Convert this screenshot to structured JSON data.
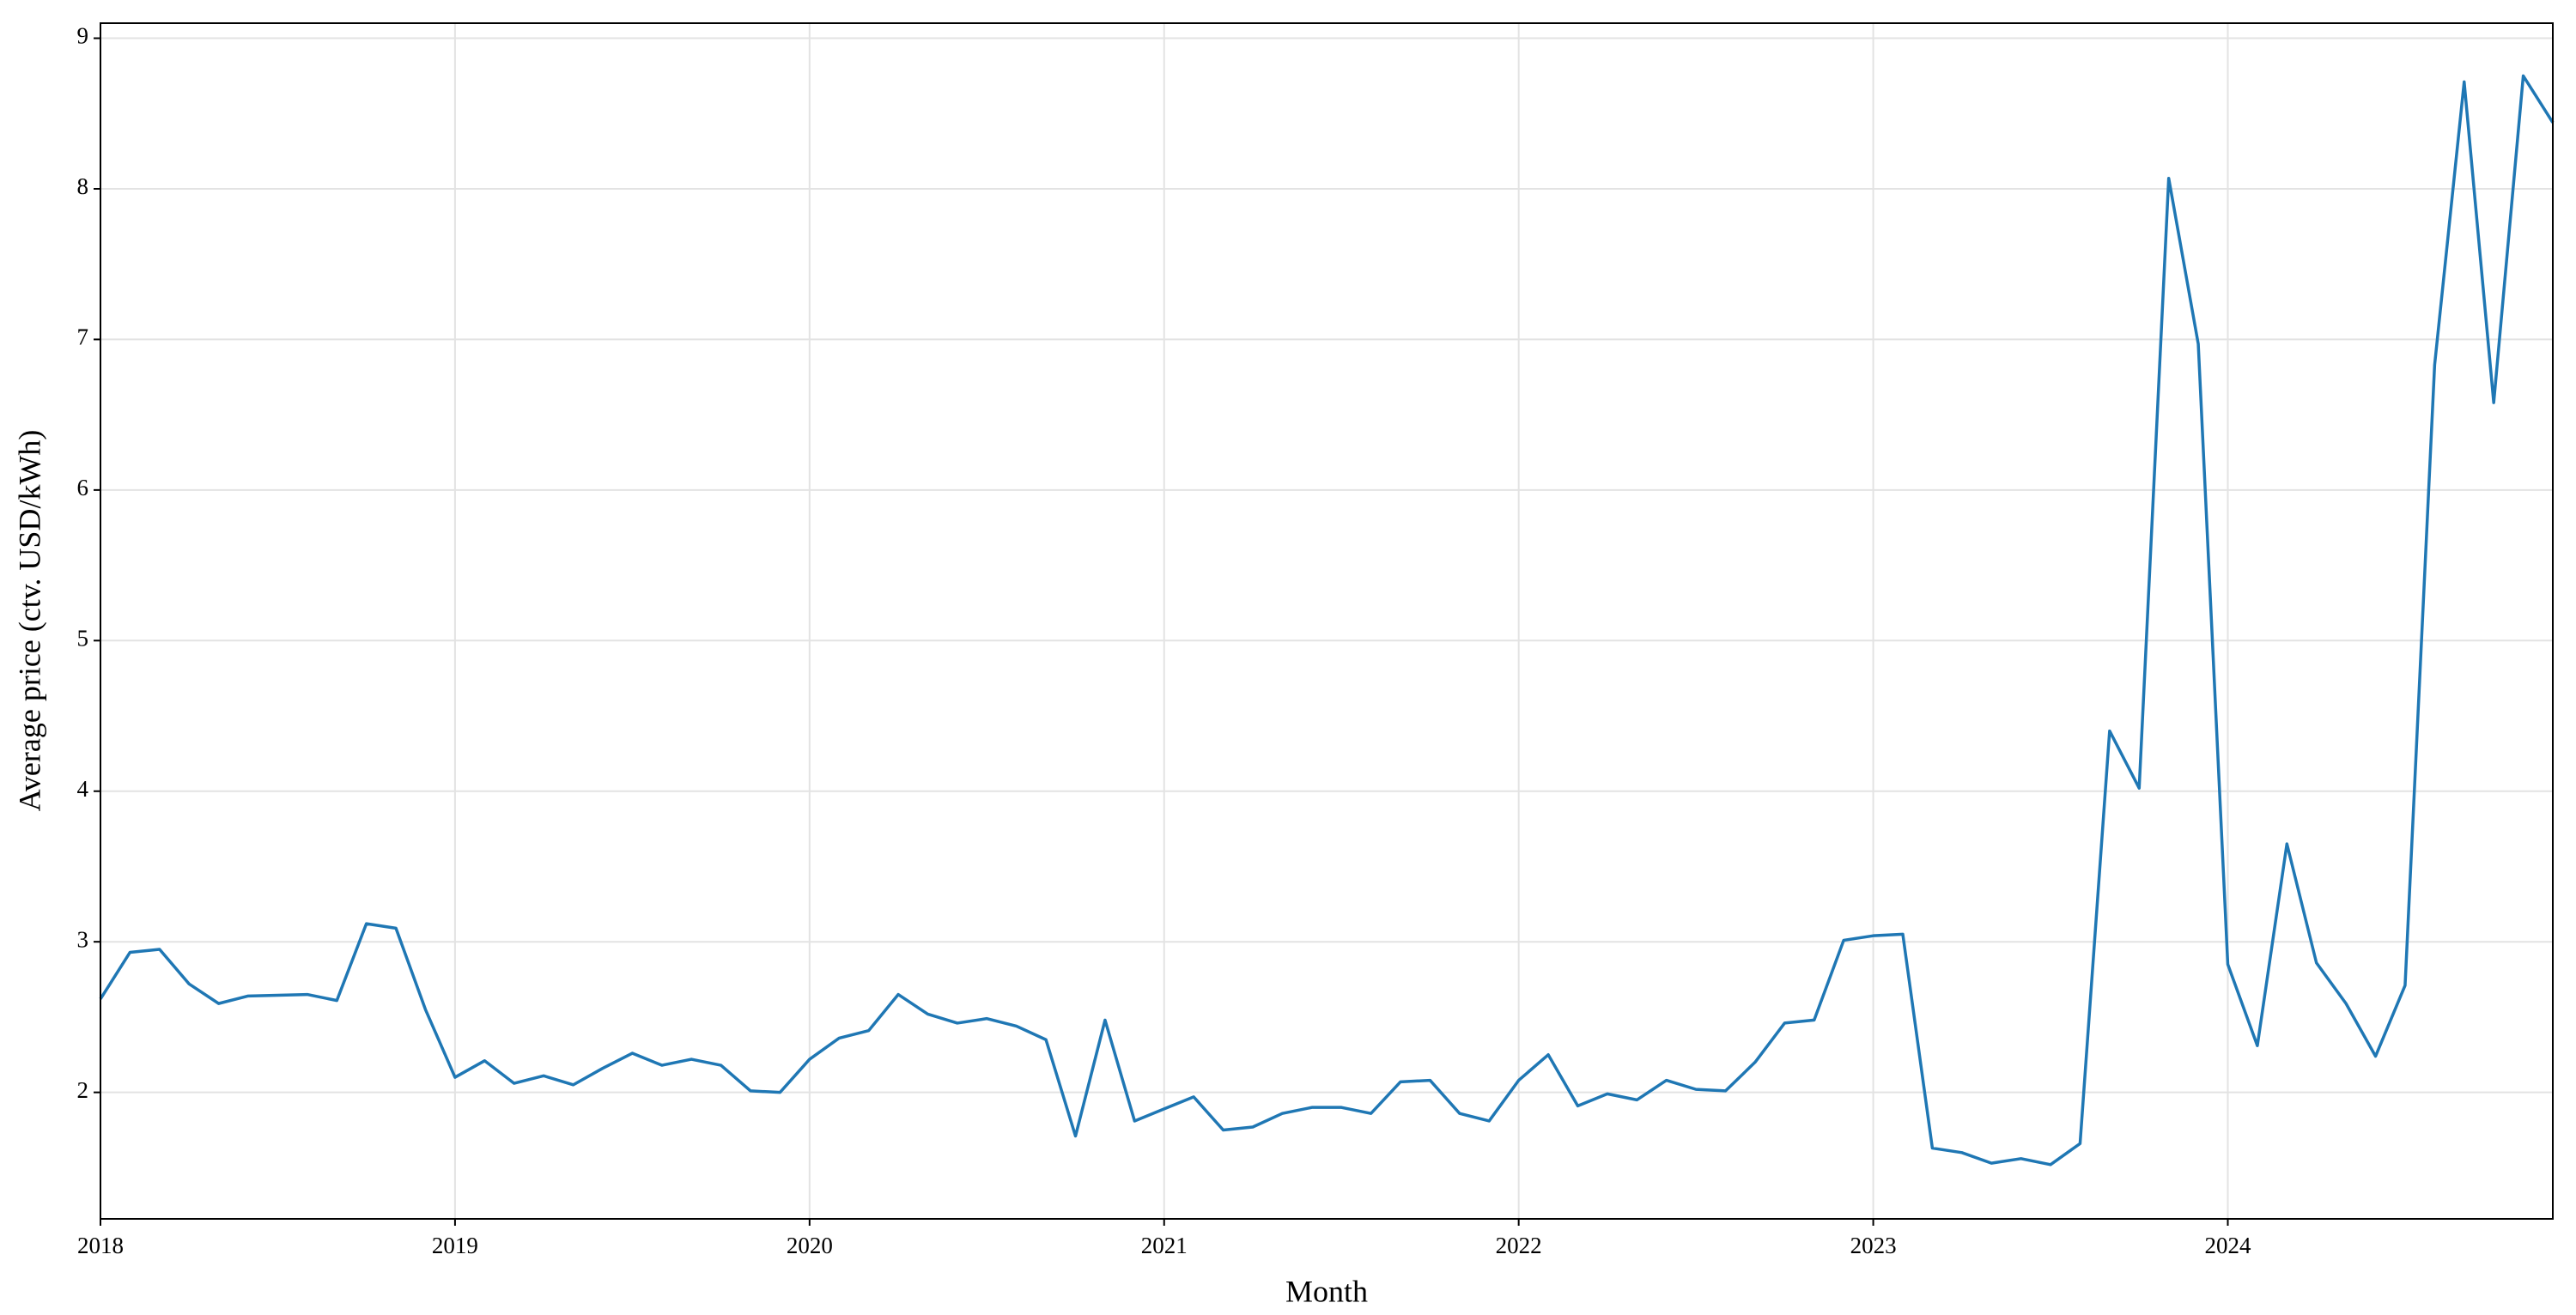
{
  "chart_data": {
    "type": "line",
    "xlabel": "Month",
    "ylabel": "Average price (ctv. USD/kWh)",
    "x": [
      "2018-01",
      "2018-02",
      "2018-03",
      "2018-04",
      "2018-05",
      "2018-06",
      "2018-07",
      "2018-08",
      "2018-09",
      "2018-10",
      "2018-11",
      "2018-12",
      "2019-01",
      "2019-02",
      "2019-03",
      "2019-04",
      "2019-05",
      "2019-06",
      "2019-07",
      "2019-08",
      "2019-09",
      "2019-10",
      "2019-11",
      "2019-12",
      "2020-01",
      "2020-02",
      "2020-03",
      "2020-04",
      "2020-05",
      "2020-06",
      "2020-07",
      "2020-08",
      "2020-09",
      "2020-10",
      "2020-11",
      "2020-12",
      "2021-01",
      "2021-02",
      "2021-03",
      "2021-04",
      "2021-05",
      "2021-06",
      "2021-07",
      "2021-08",
      "2021-09",
      "2021-10",
      "2021-11",
      "2021-12",
      "2022-01",
      "2022-02",
      "2022-03",
      "2022-04",
      "2022-05",
      "2022-06",
      "2022-07",
      "2022-08",
      "2022-09",
      "2022-10",
      "2022-11",
      "2022-12",
      "2023-01",
      "2023-02",
      "2023-03",
      "2023-04",
      "2023-05",
      "2023-06",
      "2023-07",
      "2023-08",
      "2023-09",
      "2023-10",
      "2023-11",
      "2023-12",
      "2024-01",
      "2024-02",
      "2024-03",
      "2024-04",
      "2024-05",
      "2024-06",
      "2024-07",
      "2024-08",
      "2024-09",
      "2024-10",
      "2024-11",
      "2024-12"
    ],
    "series": [
      {
        "color": "#1f77b4",
        "values": [
          2.62,
          2.93,
          2.95,
          2.72,
          2.59,
          2.64,
          2.645,
          2.65,
          2.61,
          3.12,
          3.09,
          2.55,
          2.1,
          2.21,
          2.06,
          2.11,
          2.05,
          2.16,
          2.26,
          2.18,
          2.22,
          2.18,
          2.01,
          2.0,
          2.22,
          2.36,
          2.41,
          2.65,
          2.52,
          2.46,
          2.49,
          2.44,
          2.35,
          1.71,
          2.48,
          1.81,
          1.89,
          1.97,
          1.75,
          1.77,
          1.86,
          1.9,
          1.9,
          1.86,
          2.07,
          2.08,
          1.86,
          1.81,
          2.08,
          2.25,
          1.91,
          1.99,
          1.95,
          2.08,
          2.02,
          2.01,
          2.2,
          2.46,
          2.48,
          3.01,
          3.04,
          3.05,
          1.63,
          1.6,
          1.53,
          1.56,
          1.52,
          1.66,
          4.4,
          4.02,
          8.07,
          6.97,
          2.85,
          2.31,
          3.65,
          2.86,
          2.59,
          2.24,
          2.71,
          6.83,
          8.71,
          6.58,
          8.75,
          8.44
        ]
      }
    ],
    "xlim": [
      "2018-01",
      "2024-12"
    ],
    "xticks": [
      {
        "value": "2018-01",
        "label": "2018"
      },
      {
        "value": "2019-01",
        "label": "2019"
      },
      {
        "value": "2020-01",
        "label": "2020"
      },
      {
        "value": "2021-01",
        "label": "2021"
      },
      {
        "value": "2022-01",
        "label": "2022"
      },
      {
        "value": "2023-01",
        "label": "2023"
      },
      {
        "value": "2024-01",
        "label": "2024"
      }
    ],
    "ylim": [
      1.16,
      9.1
    ],
    "yticks": [
      2,
      3,
      4,
      5,
      6,
      7,
      8,
      9
    ],
    "grid": true
  }
}
